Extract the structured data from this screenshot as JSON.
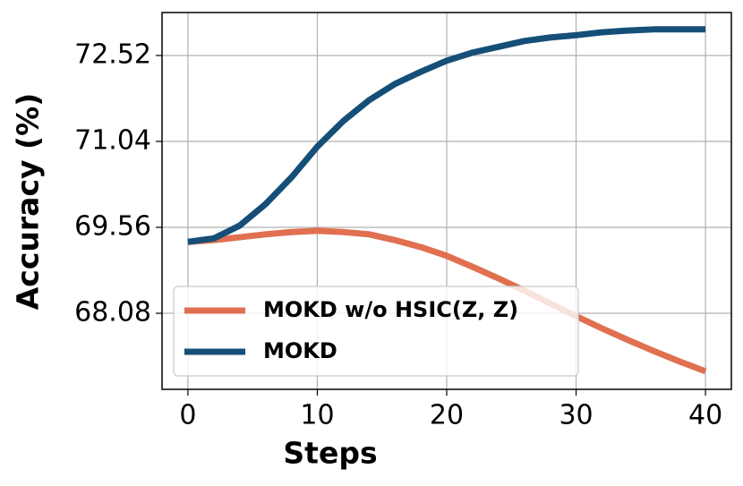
{
  "chart_data": {
    "type": "line",
    "x_label": "Steps",
    "y_label": "Accuracy (%)",
    "x": [
      0,
      2,
      4,
      6,
      8,
      10,
      12,
      14,
      16,
      18,
      20,
      22,
      24,
      26,
      28,
      30,
      32,
      34,
      36,
      38,
      40
    ],
    "series": [
      {
        "name": "MOKD w/o HSIC(Z, Z)",
        "color": "#e07050",
        "values": [
          69.31,
          69.34,
          69.39,
          69.44,
          69.48,
          69.5,
          69.48,
          69.44,
          69.34,
          69.22,
          69.07,
          68.88,
          68.68,
          68.47,
          68.25,
          68.03,
          67.82,
          67.62,
          67.43,
          67.25,
          67.08
        ]
      },
      {
        "name": "MOKD",
        "color": "#154f78",
        "values": [
          69.31,
          69.37,
          69.59,
          69.96,
          70.42,
          70.95,
          71.39,
          71.75,
          72.03,
          72.24,
          72.43,
          72.57,
          72.67,
          72.77,
          72.83,
          72.87,
          72.92,
          72.95,
          72.97,
          72.97,
          72.97
        ]
      }
    ],
    "xlim": [
      -2,
      42
    ],
    "ylim": [
      66.77,
      73.26
    ],
    "xticks": [
      0,
      10,
      20,
      30,
      40
    ],
    "yticks": [
      68.08,
      69.56,
      71.04,
      72.52
    ],
    "grid": true,
    "legend": "lower left"
  }
}
